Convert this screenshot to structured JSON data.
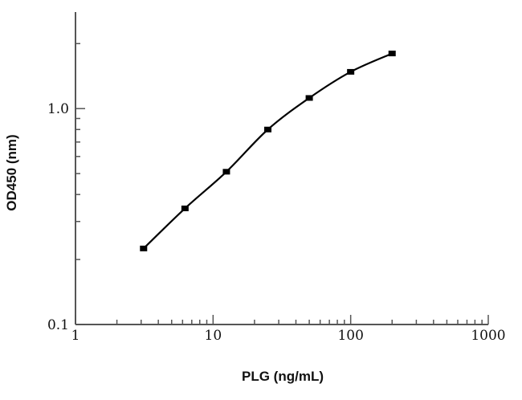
{
  "chart_data": {
    "type": "line",
    "title": "",
    "xlabel": "PLG (ng/mL)",
    "ylabel": "OD450 (nm)",
    "x_scale": "log",
    "y_scale": "log",
    "xlim": [
      1,
      1000
    ],
    "ylim": [
      0.1,
      2.8
    ],
    "grid": false,
    "legend": "none",
    "x_ticks": [
      {
        "value": 1,
        "label": "1"
      },
      {
        "value": 10,
        "label": "10"
      },
      {
        "value": 100,
        "label": "100"
      },
      {
        "value": 1000,
        "label": "1000"
      }
    ],
    "y_ticks": [
      {
        "value": 0.1,
        "label": "0.1"
      },
      {
        "value": 1.0,
        "label": "1.0"
      }
    ],
    "series": [
      {
        "x": [
          3.125,
          6.25,
          12.5,
          25,
          50,
          100,
          200
        ],
        "y": [
          0.225,
          0.345,
          0.51,
          0.8,
          1.12,
          1.48,
          1.8
        ]
      }
    ],
    "colors": {
      "line": "#000000",
      "marker": "#000000",
      "axis": "#555555"
    }
  }
}
